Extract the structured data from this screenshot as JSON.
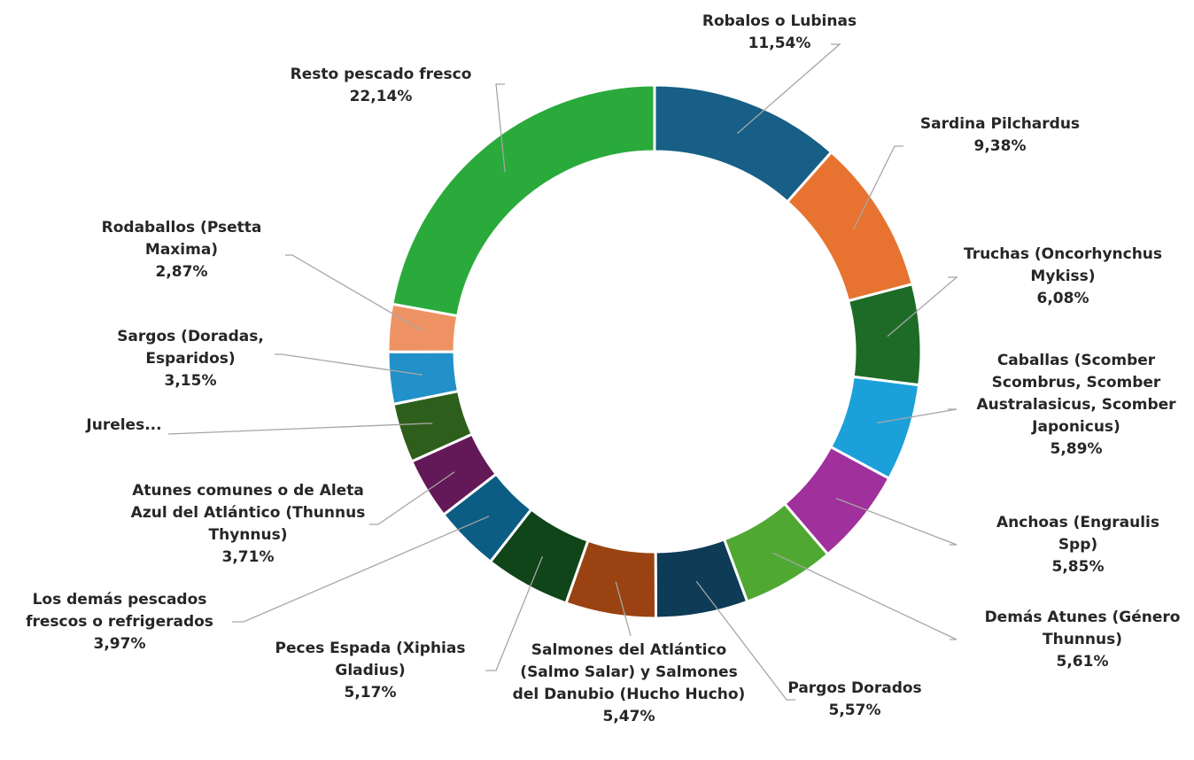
{
  "chart_data": {
    "type": "doughnut",
    "categories": [
      "Robalos o Lubinas",
      "Sardina Pilchardus",
      "Truchas (Oncorhynchus Mykiss)",
      "Caballas (Scomber Scombrus, Scomber Australasicus, Scomber Japonicus)",
      "Anchoas (Engraulis Spp)",
      "Demás Atunes (Género Thunnus)",
      "Pargos Dorados",
      "Salmones del Atlántico (Salmo Salar) y Salmones del Danubio (Hucho Hucho)",
      "Peces Espada (Xiphias Gladius)",
      "Los demás pescados frescos o refrigerados",
      "Atunes comunes o de Aleta Azul del Atlántico (Thunnus Thynnus)",
      "Jureles...",
      "Sargos (Doradas, Esparidos)",
      "Rodaballos (Psetta Maxima)",
      "Resto pescado fresco"
    ],
    "values": [
      11.54,
      9.38,
      6.08,
      5.89,
      5.85,
      5.61,
      5.57,
      5.47,
      5.17,
      3.97,
      3.71,
      3.6,
      3.15,
      2.87,
      22.14
    ],
    "value_labels": [
      "11,54%",
      "9,38%",
      "6,08%",
      "5,89%",
      "5,85%",
      "5,61%",
      "5,57%",
      "5,47%",
      "5,17%",
      "3,97%",
      "3,71%",
      null,
      "3,15%",
      "2,87%",
      "22,14%"
    ],
    "colors": [
      "#175f86",
      "#e87331",
      "#1d6b27",
      "#1ba0d9",
      "#a0309b",
      "#4fa832",
      "#0e3b56",
      "#9a4212",
      "#104419",
      "#0b5d84",
      "#631857",
      "#2e5e1c",
      "#2290c9",
      "#ef9263",
      "#2aaa3b"
    ]
  }
}
